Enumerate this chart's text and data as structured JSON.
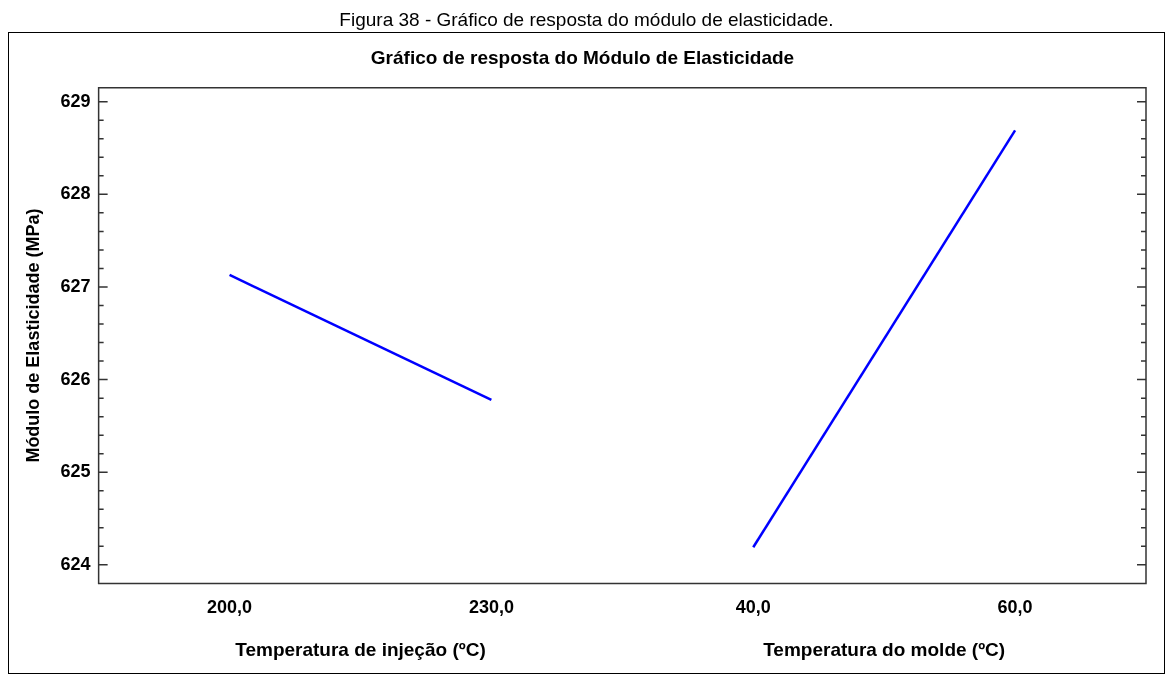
{
  "chart_data": {
    "type": "line",
    "title": "Gráfico de resposta do Módulo de Elasticidade",
    "xlabel": "Temperatura de injeção (ºC)",
    "ylabel": "Módulo de Elasticidade (MPa)",
    "annotations": [
      "Figura 38 - Gráfico de resposta do módulo de elasticidade.",
      "Temperatura do molde (ºC)"
    ],
    "categories": [
      "200,0",
      "230,0",
      "40,0",
      "60,0"
    ],
    "series": [
      {
        "color": "#0000ff",
        "values": [
          627.13,
          625.78,
          null,
          null
        ]
      },
      {
        "color": "#0000ff",
        "values": [
          null,
          null,
          624.19,
          628.69
        ]
      }
    ],
    "ylim": [
      623.8,
      629.15
    ],
    "yticks": [
      624,
      {
        "value": 624.2,
        "label": null
      },
      {
        "value": 624.4,
        "label": null
      },
      {
        "value": 624.6,
        "label": null
      },
      {
        "value": 624.8,
        "label": null
      },
      625,
      {
        "value": 625.2,
        "label": null
      },
      {
        "value": 625.4,
        "label": null
      },
      {
        "value": 625.6,
        "label": null
      },
      {
        "value": 625.8,
        "label": null
      },
      626,
      {
        "value": 626.2,
        "label": null
      },
      {
        "value": 626.4,
        "label": null
      },
      {
        "value": 626.6,
        "label": null
      },
      {
        "value": 626.8,
        "label": null
      },
      627,
      {
        "value": 627.2,
        "label": null
      },
      {
        "value": 627.4,
        "label": null
      },
      {
        "value": 627.6,
        "label": null
      },
      {
        "value": 627.8,
        "label": null
      },
      628,
      {
        "value": 628.2,
        "label": null
      },
      {
        "value": 628.4,
        "label": null
      },
      {
        "value": 628.6,
        "label": null
      },
      {
        "value": 628.8,
        "label": null
      },
      629
    ],
    "grid": false,
    "legend": false,
    "marker": "none",
    "line_style": "solid"
  }
}
